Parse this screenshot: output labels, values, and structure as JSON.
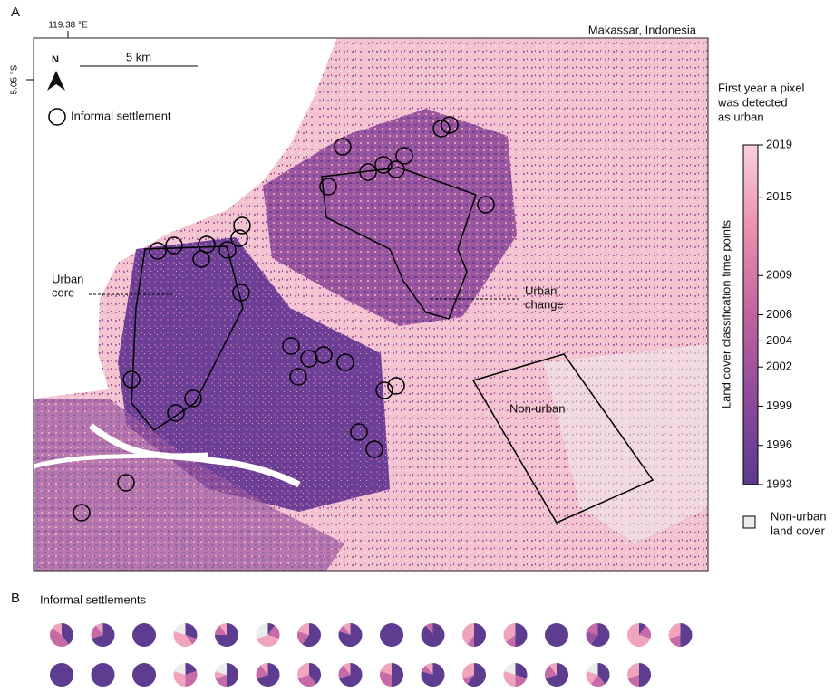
{
  "panel_a": {
    "label": "A",
    "lon_label": "119.38 °E",
    "lat_label": "5.05 °S",
    "place": "Makassar, Indonesia",
    "north": "N",
    "scale": "5 km",
    "legend_circle": "Informal settlement",
    "urban_core": {
      "lines": [
        "Urban",
        "core"
      ]
    },
    "urban_change": {
      "lines": [
        "Urban",
        "change"
      ]
    },
    "non_urban": "Non-urban",
    "colorbar": {
      "title": {
        "lines": [
          "First year a pixel",
          "was detected",
          "as urban"
        ]
      },
      "axis_label": "Land cover classification time points",
      "ylim": [
        1993,
        2019
      ],
      "yticks": [
        1993,
        1996,
        1999,
        2002,
        2004,
        2006,
        2009,
        2015,
        2019
      ],
      "colors": [
        "#5a3a8c",
        "#8d4a9c",
        "#c0649f",
        "#e98fae",
        "#fbd0dc"
      ]
    },
    "non_urban_legend": {
      "lines": [
        "Non-urban",
        "land cover"
      ],
      "color": "#ebebeb"
    }
  },
  "panel_b": {
    "label": "B",
    "title": "Informal settlements",
    "palette": [
      "#5e3c8f",
      "#9a53a0",
      "#c76aa8",
      "#f0a5bd",
      "#ececec"
    ],
    "pies": [
      {
        "values": [
          40,
          45,
          15
        ],
        "colors": [
          0,
          2,
          3
        ]
      },
      {
        "values": [
          70,
          20,
          10
        ],
        "colors": [
          0,
          2,
          3
        ]
      },
      {
        "values": [
          100
        ],
        "colors": [
          0
        ]
      },
      {
        "values": [
          30,
          10,
          40,
          20
        ],
        "colors": [
          0,
          2,
          3,
          4
        ]
      },
      {
        "values": [
          75,
          15,
          10
        ],
        "colors": [
          0,
          2,
          3
        ]
      },
      {
        "values": [
          10,
          20,
          40,
          30
        ],
        "colors": [
          0,
          2,
          3,
          4
        ]
      },
      {
        "values": [
          60,
          20,
          20
        ],
        "colors": [
          0,
          2,
          3
        ]
      },
      {
        "values": [
          80,
          10,
          10
        ],
        "colors": [
          0,
          2,
          3
        ]
      },
      {
        "values": [
          100
        ],
        "colors": [
          0
        ]
      },
      {
        "values": [
          90,
          10
        ],
        "colors": [
          0,
          2
        ]
      },
      {
        "values": [
          50,
          10,
          40
        ],
        "colors": [
          0,
          2,
          3
        ]
      },
      {
        "values": [
          50,
          15,
          35
        ],
        "colors": [
          0,
          2,
          3
        ]
      },
      {
        "values": [
          100
        ],
        "colors": [
          0
        ]
      },
      {
        "values": [
          60,
          20,
          20
        ],
        "colors": [
          0,
          1,
          2
        ]
      },
      {
        "values": [
          10,
          20,
          70
        ],
        "colors": [
          0,
          2,
          3
        ]
      },
      {
        "values": [
          50,
          20,
          30
        ],
        "colors": [
          0,
          2,
          3
        ]
      },
      {
        "values": [
          100
        ],
        "colors": [
          0
        ]
      },
      {
        "values": [
          100
        ],
        "colors": [
          0
        ]
      },
      {
        "values": [
          100
        ],
        "colors": [
          0
        ]
      },
      {
        "values": [
          20,
          30,
          30,
          20
        ],
        "colors": [
          0,
          2,
          3,
          4
        ]
      },
      {
        "values": [
          50,
          20,
          10,
          20
        ],
        "colors": [
          0,
          2,
          3,
          4
        ]
      },
      {
        "values": [
          70,
          20,
          10
        ],
        "colors": [
          0,
          2,
          3
        ]
      },
      {
        "values": [
          40,
          30,
          30
        ],
        "colors": [
          0,
          2,
          3
        ]
      },
      {
        "values": [
          70,
          20,
          10
        ],
        "colors": [
          0,
          2,
          3
        ]
      },
      {
        "values": [
          50,
          30,
          20
        ],
        "colors": [
          0,
          2,
          3
        ]
      },
      {
        "values": [
          80,
          10,
          10
        ],
        "colors": [
          0,
          2,
          3
        ]
      },
      {
        "values": [
          60,
          10,
          30
        ],
        "colors": [
          0,
          2,
          3
        ]
      },
      {
        "values": [
          30,
          20,
          30,
          20
        ],
        "colors": [
          0,
          2,
          3,
          4
        ]
      },
      {
        "values": [
          70,
          20,
          10
        ],
        "colors": [
          0,
          2,
          3
        ]
      },
      {
        "values": [
          40,
          20,
          20,
          20
        ],
        "colors": [
          0,
          2,
          3,
          4
        ]
      },
      {
        "values": [
          50,
          20,
          30
        ],
        "colors": [
          0,
          2,
          3
        ]
      }
    ]
  }
}
